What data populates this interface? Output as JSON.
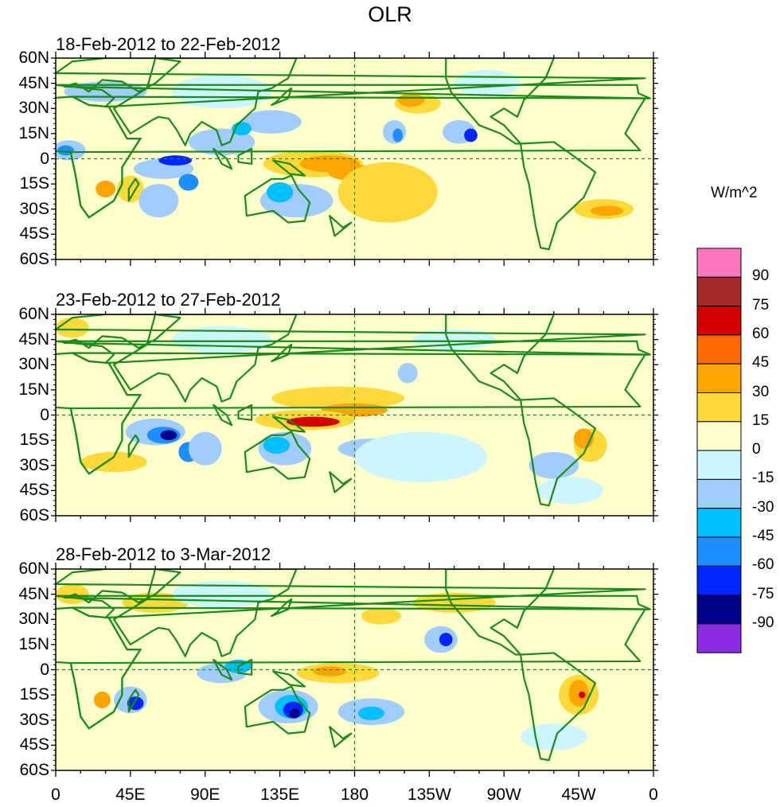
{
  "title": "OLR",
  "units": "W/m^2",
  "panels": [
    {
      "label": "18-Feb-2012 to 22-Feb-2012"
    },
    {
      "label": "23-Feb-2012 to 27-Feb-2012"
    },
    {
      "label": "28-Feb-2012 to 3-Mar-2012"
    }
  ],
  "lat_labels": [
    "60N",
    "45N",
    "30N",
    "15N",
    "0",
    "15S",
    "30S",
    "45S",
    "60S"
  ],
  "lon_labels": [
    "0",
    "45E",
    "90E",
    "135E",
    "180",
    "135W",
    "90W",
    "45W",
    "0"
  ],
  "colorbar": {
    "labels": [
      "90",
      "75",
      "60",
      "45",
      "30",
      "15",
      "0",
      "-15",
      "-30",
      "-45",
      "-60",
      "-75",
      "-90"
    ],
    "colors": [
      "#ff77bb",
      "#a52a2a",
      "#d40000",
      "#ff6a00",
      "#ffa500",
      "#ffd93a",
      "#ffffcc",
      "#ccf5ff",
      "#a0ccff",
      "#00bfff",
      "#1e8fff",
      "#0026ff",
      "#00008b",
      "#8a2be2"
    ]
  },
  "colors": {
    "ocean": "#ffffcc",
    "coastline": "#1a8a1a",
    "grid": "#1a8a1a"
  }
}
